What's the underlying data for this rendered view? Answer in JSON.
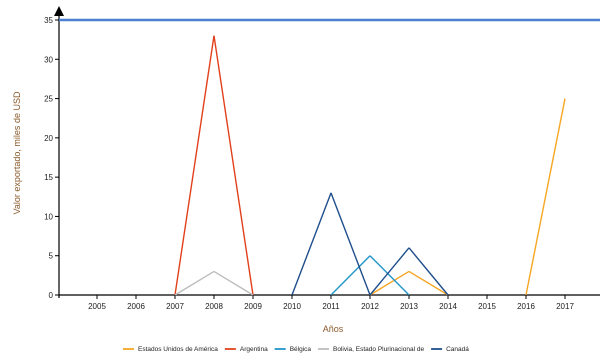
{
  "chart_data": {
    "type": "line",
    "title": "",
    "xlabel": "Años",
    "ylabel": "Valor exportado, miles de USD",
    "x": [
      "2005",
      "2006",
      "2007",
      "2008",
      "2009",
      "2010",
      "2011",
      "2012",
      "2013",
      "2014",
      "2015",
      "2016",
      "2017"
    ],
    "ylim": [
      0,
      35
    ],
    "yticks": [
      0,
      5,
      10,
      15,
      20,
      25,
      30,
      35
    ],
    "grid": false,
    "legend_position": "bottom",
    "reference_line": {
      "value": 35,
      "color": "#4a7fd4"
    },
    "series": [
      {
        "name": "Estados Unidos de América",
        "color": "#f5a623",
        "values": [
          0,
          0,
          0,
          0,
          0,
          0,
          0,
          0,
          3,
          0,
          0,
          0,
          25
        ],
        "visible": [
          false,
          false,
          false,
          false,
          false,
          false,
          false,
          true,
          true,
          true,
          false,
          true,
          true
        ]
      },
      {
        "name": "Argentina",
        "color": "#e2401c",
        "values": [
          0,
          0,
          0,
          33,
          0,
          0,
          0,
          0,
          0,
          0,
          0,
          0,
          0
        ],
        "visible": [
          false,
          false,
          true,
          true,
          true,
          false,
          false,
          false,
          false,
          false,
          false,
          false,
          false
        ]
      },
      {
        "name": "Bélgica",
        "color": "#2196c9",
        "values": [
          0,
          0,
          0,
          0,
          0,
          0,
          0,
          5,
          0,
          0,
          0,
          0,
          0
        ],
        "visible": [
          false,
          false,
          false,
          false,
          false,
          false,
          true,
          true,
          true,
          false,
          false,
          false,
          false
        ]
      },
      {
        "name": "Bolivia, Estado Plurinacional de",
        "color": "#bdbdbd",
        "values": [
          0,
          0,
          0,
          3,
          0,
          0,
          0,
          0,
          0,
          0,
          0,
          0,
          0
        ],
        "visible": [
          false,
          false,
          true,
          true,
          true,
          false,
          false,
          false,
          false,
          false,
          false,
          false,
          false
        ]
      },
      {
        "name": "Canadá",
        "color": "#1f4e8c",
        "values": [
          0,
          0,
          0,
          0,
          0,
          0,
          13,
          0,
          6,
          0,
          0,
          0,
          0
        ],
        "visible": [
          false,
          false,
          false,
          false,
          false,
          true,
          true,
          true,
          true,
          true,
          false,
          false,
          false
        ]
      }
    ]
  }
}
